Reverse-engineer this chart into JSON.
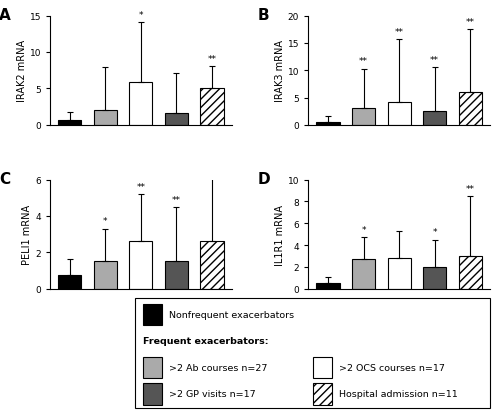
{
  "panels": [
    {
      "label": "A",
      "ylabel": "IRAK2 mRNA",
      "ylim": [
        0,
        15
      ],
      "yticks": [
        0,
        5,
        10,
        15
      ],
      "bars": [
        {
          "value": 0.7,
          "err": 1.1,
          "color": "black",
          "hatch": null
        },
        {
          "value": 2.0,
          "err": 6.0,
          "color": "#aaaaaa",
          "hatch": null
        },
        {
          "value": 5.9,
          "err": 8.2,
          "color": "white",
          "hatch": null
        },
        {
          "value": 1.6,
          "err": 5.5,
          "color": "#555555",
          "hatch": null
        },
        {
          "value": 5.1,
          "err": 3.0,
          "color": "white",
          "hatch": "////"
        }
      ],
      "stars": [
        "",
        "",
        "*",
        "",
        "**"
      ]
    },
    {
      "label": "B",
      "ylabel": "IRAK3 mRNA",
      "ylim": [
        0,
        20
      ],
      "yticks": [
        0,
        5,
        10,
        15,
        20
      ],
      "bars": [
        {
          "value": 0.6,
          "err": 1.0,
          "color": "black",
          "hatch": null
        },
        {
          "value": 3.1,
          "err": 7.2,
          "color": "#aaaaaa",
          "hatch": null
        },
        {
          "value": 4.2,
          "err": 11.5,
          "color": "white",
          "hatch": null
        },
        {
          "value": 2.5,
          "err": 8.0,
          "color": "#555555",
          "hatch": null
        },
        {
          "value": 6.0,
          "err": 11.5,
          "color": "white",
          "hatch": "////"
        }
      ],
      "stars": [
        "",
        "**",
        "**",
        "**",
        "**"
      ]
    },
    {
      "label": "C",
      "ylabel": "PELI1 mRNA",
      "ylim": [
        0,
        6
      ],
      "yticks": [
        0,
        2,
        4,
        6
      ],
      "bars": [
        {
          "value": 0.75,
          "err": 0.9,
          "color": "black",
          "hatch": null
        },
        {
          "value": 1.5,
          "err": 1.8,
          "color": "#aaaaaa",
          "hatch": null
        },
        {
          "value": 2.6,
          "err": 2.6,
          "color": "white",
          "hatch": null
        },
        {
          "value": 1.5,
          "err": 3.0,
          "color": "#555555",
          "hatch": null
        },
        {
          "value": 2.6,
          "err": 3.5,
          "color": "white",
          "hatch": "////"
        }
      ],
      "stars": [
        "",
        "*",
        "**",
        "**",
        ""
      ]
    },
    {
      "label": "D",
      "ylabel": "IL1R1 mRNA",
      "ylim": [
        0,
        10
      ],
      "yticks": [
        0,
        2,
        4,
        6,
        8,
        10
      ],
      "bars": [
        {
          "value": 0.5,
          "err": 0.6,
          "color": "black",
          "hatch": null
        },
        {
          "value": 2.7,
          "err": 2.0,
          "color": "#aaaaaa",
          "hatch": null
        },
        {
          "value": 2.8,
          "err": 2.5,
          "color": "white",
          "hatch": null
        },
        {
          "value": 2.0,
          "err": 2.5,
          "color": "#555555",
          "hatch": null
        },
        {
          "value": 3.0,
          "err": 5.5,
          "color": "white",
          "hatch": "////"
        }
      ],
      "stars": [
        "",
        "*",
        "",
        "*",
        "**"
      ]
    }
  ],
  "legend": {
    "nonfreq_label": "Nonfrequent exacerbators",
    "freq_header": "Frequent exacerbators:",
    "entries_left": [
      {
        "label": ">2 Ab courses n=27",
        "color": "#aaaaaa",
        "hatch": null
      },
      {
        "label": ">2 GP visits n=17",
        "color": "#555555",
        "hatch": null
      }
    ],
    "entries_right": [
      {
        "label": ">2 OCS courses n=17",
        "color": "white",
        "hatch": null
      },
      {
        "label": "Hospital admission n=11",
        "color": "white",
        "hatch": "////"
      }
    ]
  }
}
